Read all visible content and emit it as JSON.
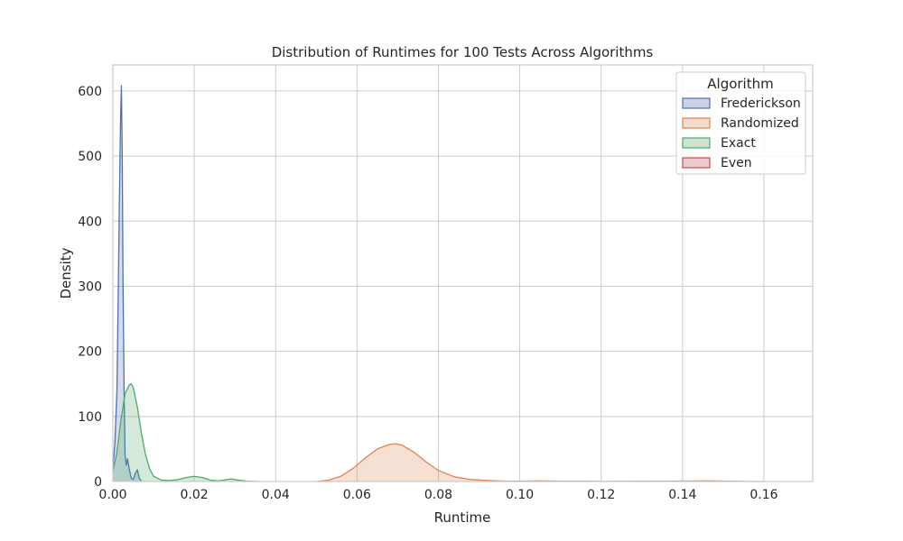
{
  "chart_data": {
    "type": "area",
    "title": "Distribution of Runtimes for 100 Tests Across Algorithms",
    "xlabel": "Runtime",
    "ylabel": "Density",
    "xlim": [
      0.0,
      0.172
    ],
    "ylim": [
      0,
      640
    ],
    "x_ticks": [
      "0.00",
      "0.02",
      "0.04",
      "0.06",
      "0.08",
      "0.10",
      "0.12",
      "0.14",
      "0.16"
    ],
    "y_ticks": [
      "0",
      "100",
      "200",
      "300",
      "400",
      "500",
      "600"
    ],
    "grid": true,
    "legend": {
      "title": "Algorithm",
      "position": "top-right"
    },
    "series": [
      {
        "name": "Frederickson",
        "color": "#4c72b0",
        "x": [
          0.0,
          0.0005,
          0.001,
          0.0013,
          0.0016,
          0.0019,
          0.0021,
          0.0023,
          0.0025,
          0.0028,
          0.003,
          0.0033,
          0.0036,
          0.004,
          0.0045,
          0.005,
          0.0055,
          0.006,
          0.0065,
          0.007
        ],
        "values": [
          20,
          60,
          140,
          280,
          430,
          560,
          608,
          500,
          300,
          120,
          40,
          25,
          35,
          20,
          5,
          3,
          12,
          18,
          5,
          0
        ]
      },
      {
        "name": "Randomized",
        "color": "#dd8452",
        "x": [
          0.05,
          0.053,
          0.056,
          0.059,
          0.062,
          0.065,
          0.068,
          0.0695,
          0.071,
          0.074,
          0.077,
          0.08,
          0.084,
          0.088,
          0.092,
          0.097,
          0.1,
          0.105,
          0.11,
          0.12,
          0.13,
          0.14,
          0.145,
          0.15,
          0.155,
          0.16
        ],
        "values": [
          0,
          2,
          8,
          20,
          36,
          50,
          57,
          58,
          56,
          45,
          30,
          17,
          7,
          3,
          1.5,
          0.5,
          0.5,
          1,
          0.5,
          0.2,
          0.3,
          0.6,
          1,
          0.6,
          0.2,
          0
        ]
      },
      {
        "name": "Exact",
        "color": "#55a868",
        "x": [
          0.0,
          0.001,
          0.002,
          0.003,
          0.004,
          0.0045,
          0.005,
          0.006,
          0.007,
          0.008,
          0.009,
          0.01,
          0.012,
          0.014,
          0.016,
          0.018,
          0.02,
          0.022,
          0.024,
          0.026,
          0.028,
          0.029,
          0.031,
          0.033,
          0.036
        ],
        "values": [
          15,
          45,
          95,
          135,
          148,
          150,
          145,
          115,
          75,
          42,
          20,
          8,
          2,
          1.5,
          3,
          6,
          8,
          6,
          2,
          1,
          3,
          4,
          2,
          0.5,
          0
        ]
      },
      {
        "name": "Even",
        "color": "#c44e52",
        "x": [],
        "values": []
      }
    ]
  }
}
